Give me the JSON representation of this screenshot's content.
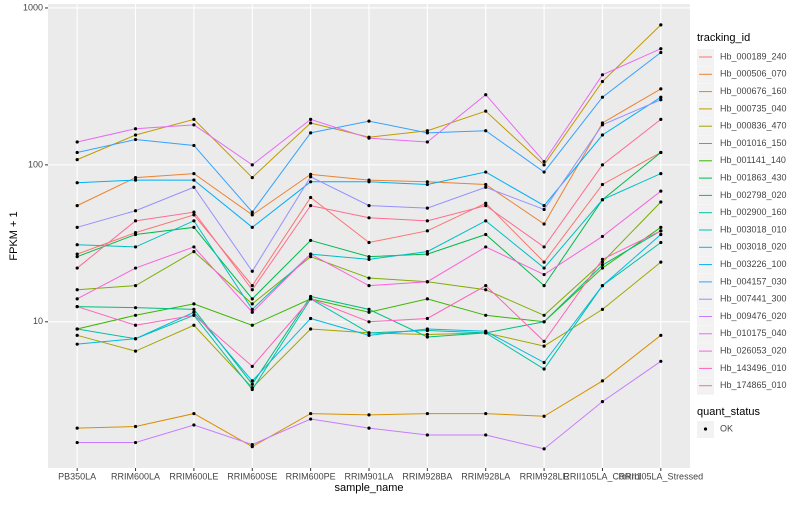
{
  "chart_data": {
    "type": "line",
    "log_y": true,
    "grid": true,
    "x_label": "sample_name",
    "y_label": "FPKM + 1",
    "categories": [
      "PB350LA",
      "RRIM600LA",
      "RRIM600LE",
      "RRIM600SE",
      "RRIM600PE",
      "RRIM901LA",
      "RRIM928BA",
      "RRIM928LA",
      "RRIM928LE",
      "RRII105LA_Control",
      "RRII105LA_Stressed"
    ],
    "ylim": [
      1.17,
      1060
    ],
    "yticks": [
      10,
      100,
      1000
    ],
    "legend_title": "tracking_id",
    "series": [
      {
        "name": "Hb_000189_240",
        "color": "#F8766D",
        "values": [
          27,
          37,
          48,
          17,
          62,
          32,
          38,
          57,
          24,
          75,
          120
        ]
      },
      {
        "name": "Hb_000506_070",
        "color": "#EA8331",
        "values": [
          55,
          83,
          88,
          48,
          87,
          80,
          78,
          75,
          42,
          185,
          305
        ]
      },
      {
        "name": "Hb_000676_160",
        "color": "#D89000",
        "values": [
          2.1,
          2.15,
          2.6,
          1.6,
          2.6,
          2.55,
          2.6,
          2.6,
          2.5,
          4.2,
          8.2
        ]
      },
      {
        "name": "Hb_000735_040",
        "color": "#C09B00",
        "values": [
          108,
          155,
          195,
          83,
          185,
          150,
          165,
          220,
          100,
          340,
          780
        ]
      },
      {
        "name": "Hb_000836_470",
        "color": "#A3A500",
        "values": [
          8.2,
          6.5,
          9.5,
          3.8,
          9,
          8.5,
          8.3,
          8.5,
          7,
          12,
          24
        ]
      },
      {
        "name": "Hb_001016_150",
        "color": "#7CAE00",
        "values": [
          16,
          17,
          28,
          13,
          26,
          19,
          18,
          16,
          11,
          24,
          58
        ]
      },
      {
        "name": "Hb_001141_140",
        "color": "#39B600",
        "values": [
          9,
          11,
          13,
          9.5,
          14,
          11.5,
          14,
          11,
          10,
          22,
          40
        ]
      },
      {
        "name": "Hb_001863_430",
        "color": "#00BB4E",
        "values": [
          26,
          36,
          40,
          14,
          33,
          26,
          27,
          36,
          17,
          60,
          120
        ]
      },
      {
        "name": "Hb_002798_020",
        "color": "#00BF7D",
        "values": [
          12.5,
          12.3,
          12,
          4,
          14.5,
          12,
          8,
          8.5,
          10,
          23,
          38
        ]
      },
      {
        "name": "Hb_002900_160",
        "color": "#00C1A3",
        "values": [
          9,
          7.8,
          11,
          3.7,
          14,
          8.5,
          8.8,
          8.5,
          5,
          17,
          32
        ]
      },
      {
        "name": "Hb_003018_010",
        "color": "#00BFC4",
        "values": [
          31,
          30,
          44,
          12,
          27,
          25,
          28,
          44,
          22,
          60,
          88
        ]
      },
      {
        "name": "Hb_003018_020",
        "color": "#00BAE0",
        "values": [
          7.2,
          7.8,
          11.5,
          4.2,
          10.5,
          8.2,
          9,
          8.7,
          5.5,
          17,
          36
        ]
      },
      {
        "name": "Hb_003226_100",
        "color": "#00B0F6",
        "values": [
          77,
          80,
          80,
          40,
          78,
          78,
          75,
          90,
          55,
          155,
          270
        ]
      },
      {
        "name": "Hb_004157_030",
        "color": "#35A2FF",
        "values": [
          120,
          145,
          133,
          50,
          160,
          190,
          160,
          165,
          90,
          270,
          520
        ]
      },
      {
        "name": "Hb_007441_300",
        "color": "#9590FF",
        "values": [
          40,
          51,
          72,
          21,
          84,
          55,
          53,
          72,
          52,
          180,
          260
        ]
      },
      {
        "name": "Hb_009476_020",
        "color": "#C77CFF",
        "values": [
          1.7,
          1.7,
          2.2,
          1.65,
          2.4,
          2.1,
          1.9,
          1.9,
          1.55,
          3.1,
          5.6
        ]
      },
      {
        "name": "Hb_010175_040",
        "color": "#E76BF3",
        "values": [
          140,
          170,
          180,
          100,
          195,
          148,
          140,
          280,
          105,
          375,
          550
        ]
      },
      {
        "name": "Hb_026053_020",
        "color": "#FA62DB",
        "values": [
          14,
          22,
          30,
          11.5,
          27,
          17,
          18,
          30,
          20,
          35,
          68
        ]
      },
      {
        "name": "Hb_143496_010",
        "color": "#FF62BC",
        "values": [
          12.5,
          9.5,
          11,
          5.2,
          14,
          10,
          10.5,
          17,
          7.5,
          25,
          38
        ]
      },
      {
        "name": "Hb_174865_010",
        "color": "#FF6C91",
        "values": [
          22,
          44,
          50,
          16,
          55,
          46,
          44,
          55,
          30,
          100,
          195
        ]
      }
    ],
    "point_legend_title": "quant_status",
    "point_legend_items": [
      "OK"
    ]
  }
}
